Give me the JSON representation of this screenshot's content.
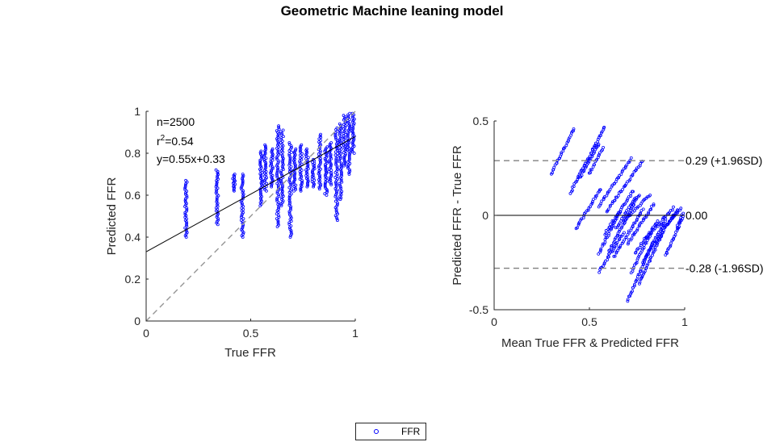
{
  "title": "Geometric Machine leaning model",
  "legend": {
    "label": "FFR",
    "marker_color": "#0000ff"
  },
  "colors": {
    "points": "#0000ff",
    "fit_line": "#000000",
    "identity_line": "#969696",
    "sd_lines": "#808080"
  },
  "chart_data": [
    {
      "type": "scatter",
      "xlabel": "True FFR",
      "ylabel": "Predicted FFR",
      "xlim": [
        0,
        1
      ],
      "ylim": [
        0,
        1
      ],
      "xticks": [
        "0",
        "0.5",
        "1"
      ],
      "yticks": [
        "0",
        "0.2",
        "0.4",
        "0.6",
        "0.8",
        "1"
      ],
      "annotations": {
        "n": "n=2500",
        "r2_prefix": "r",
        "r2_sup": "2",
        "r2_value": "=0.54",
        "equation": "y=0.55x+0.33"
      },
      "fit_line": {
        "slope": 0.55,
        "intercept": 0.33
      },
      "identity_line": true,
      "clusters": [
        {
          "x": 0.19,
          "y_min": 0.4,
          "y_max": 0.67
        },
        {
          "x": 0.34,
          "y_min": 0.46,
          "y_max": 0.72
        },
        {
          "x": 0.42,
          "y_min": 0.62,
          "y_max": 0.7
        },
        {
          "x": 0.46,
          "y_min": 0.4,
          "y_max": 0.7
        },
        {
          "x": 0.55,
          "y_min": 0.55,
          "y_max": 0.81
        },
        {
          "x": 0.57,
          "y_min": 0.62,
          "y_max": 0.84
        },
        {
          "x": 0.6,
          "y_min": 0.64,
          "y_max": 0.82
        },
        {
          "x": 0.63,
          "y_min": 0.45,
          "y_max": 0.93
        },
        {
          "x": 0.65,
          "y_min": 0.55,
          "y_max": 0.91
        },
        {
          "x": 0.69,
          "y_min": 0.4,
          "y_max": 0.85
        },
        {
          "x": 0.71,
          "y_min": 0.62,
          "y_max": 0.82
        },
        {
          "x": 0.74,
          "y_min": 0.62,
          "y_max": 0.84
        },
        {
          "x": 0.77,
          "y_min": 0.64,
          "y_max": 0.82
        },
        {
          "x": 0.8,
          "y_min": 0.64,
          "y_max": 0.77
        },
        {
          "x": 0.83,
          "y_min": 0.63,
          "y_max": 0.89
        },
        {
          "x": 0.86,
          "y_min": 0.6,
          "y_max": 0.83
        },
        {
          "x": 0.88,
          "y_min": 0.65,
          "y_max": 0.85
        },
        {
          "x": 0.91,
          "y_min": 0.48,
          "y_max": 0.92
        },
        {
          "x": 0.93,
          "y_min": 0.58,
          "y_max": 0.94
        },
        {
          "x": 0.95,
          "y_min": 0.74,
          "y_max": 0.98
        },
        {
          "x": 0.97,
          "y_min": 0.7,
          "y_max": 0.99
        },
        {
          "x": 0.99,
          "y_min": 0.8,
          "y_max": 0.99
        }
      ]
    },
    {
      "type": "scatter",
      "xlabel": "Mean True FFR & Predicted FFR",
      "ylabel": "Predicted FFR - True FFR",
      "xlim": [
        0,
        1
      ],
      "ylim": [
        -0.5,
        0.5
      ],
      "xticks": [
        "0",
        "0.5",
        "1"
      ],
      "yticks": [
        "-0.5",
        "0",
        "0.5"
      ],
      "mean_line": {
        "y": 0.0,
        "label": "0.00"
      },
      "upper_loa": {
        "y": 0.29,
        "label": "0.29 (+1.96SD)"
      },
      "lower_loa": {
        "y": -0.28,
        "label": "-0.28 (-1.96SD)"
      },
      "segments": [
        {
          "x1": 0.3,
          "y1": 0.22,
          "x2": 0.42,
          "y2": 0.46
        },
        {
          "x1": 0.4,
          "y1": 0.12,
          "x2": 0.58,
          "y2": 0.47
        },
        {
          "x1": 0.45,
          "y1": 0.2,
          "x2": 0.55,
          "y2": 0.38
        },
        {
          "x1": 0.5,
          "y1": 0.22,
          "x2": 0.57,
          "y2": 0.36
        },
        {
          "x1": 0.55,
          "y1": 0.05,
          "x2": 0.72,
          "y2": 0.3
        },
        {
          "x1": 0.59,
          "y1": 0.02,
          "x2": 0.78,
          "y2": 0.29
        },
        {
          "x1": 0.43,
          "y1": -0.07,
          "x2": 0.56,
          "y2": 0.14
        },
        {
          "x1": 0.55,
          "y1": -0.2,
          "x2": 0.66,
          "y2": 0.02
        },
        {
          "x1": 0.58,
          "y1": -0.1,
          "x2": 0.73,
          "y2": 0.13
        },
        {
          "x1": 0.6,
          "y1": -0.2,
          "x2": 0.76,
          "y2": 0.11
        },
        {
          "x1": 0.64,
          "y1": -0.07,
          "x2": 0.74,
          "y2": 0.09
        },
        {
          "x1": 0.68,
          "y1": -0.03,
          "x2": 0.82,
          "y2": 0.11
        },
        {
          "x1": 0.55,
          "y1": -0.3,
          "x2": 0.68,
          "y2": -0.09
        },
        {
          "x1": 0.63,
          "y1": -0.22,
          "x2": 0.78,
          "y2": 0.03
        },
        {
          "x1": 0.7,
          "y1": -0.15,
          "x2": 0.84,
          "y2": 0.06
        },
        {
          "x1": 0.72,
          "y1": -0.3,
          "x2": 0.82,
          "y2": -0.1
        },
        {
          "x1": 0.74,
          "y1": -0.2,
          "x2": 0.86,
          "y2": -0.03
        },
        {
          "x1": 0.76,
          "y1": -0.36,
          "x2": 0.88,
          "y2": -0.1
        },
        {
          "x1": 0.78,
          "y1": -0.25,
          "x2": 0.9,
          "y2": -0.02
        },
        {
          "x1": 0.8,
          "y1": -0.12,
          "x2": 0.94,
          "y2": 0.04
        },
        {
          "x1": 0.7,
          "y1": -0.45,
          "x2": 0.83,
          "y2": -0.15
        },
        {
          "x1": 0.84,
          "y1": -0.16,
          "x2": 0.96,
          "y2": 0.03
        },
        {
          "x1": 0.88,
          "y1": -0.08,
          "x2": 0.98,
          "y2": 0.04
        },
        {
          "x1": 0.9,
          "y1": -0.21,
          "x2": 0.99,
          "y2": -0.01
        },
        {
          "x1": 0.96,
          "y1": -0.06,
          "x2": 0.99,
          "y2": 0.01
        }
      ]
    }
  ]
}
